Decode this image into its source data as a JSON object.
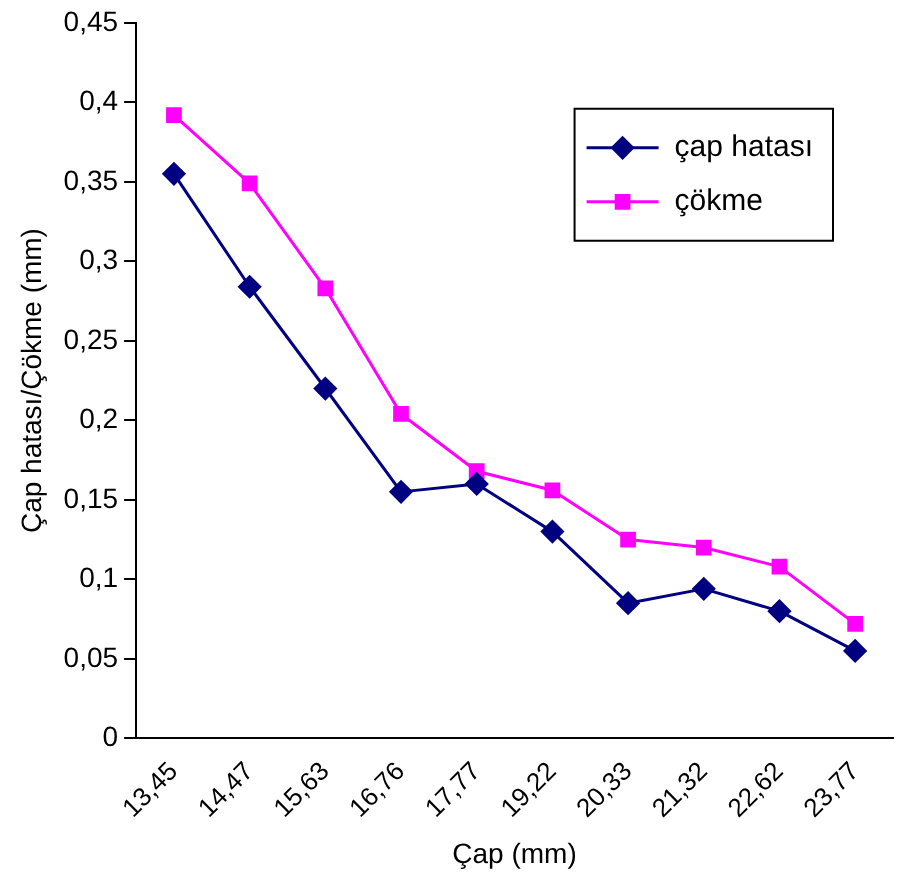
{
  "chart_data": {
    "type": "line",
    "xlabel": "Çap (mm)",
    "ylabel": "Çap hatası/Çökme (mm)",
    "categories": [
      "13,45",
      "14,47",
      "15,63",
      "16,76",
      "17,77",
      "19,22",
      "20,33",
      "21,32",
      "22,62",
      "23,77"
    ],
    "series": [
      {
        "name": "çap hatası",
        "color": "#000080",
        "marker": "diamond",
        "values": [
          0.355,
          0.284,
          0.22,
          0.155,
          0.16,
          0.13,
          0.085,
          0.094,
          0.08,
          0.055
        ]
      },
      {
        "name": "çökme",
        "color": "#ff00ff",
        "marker": "square",
        "values": [
          0.392,
          0.349,
          0.283,
          0.204,
          0.168,
          0.156,
          0.125,
          0.12,
          0.108,
          0.072
        ]
      }
    ],
    "ylim": [
      0,
      0.45
    ],
    "yticks": [
      {
        "value": 0,
        "label": "0"
      },
      {
        "value": 0.05,
        "label": "0,05"
      },
      {
        "value": 0.1,
        "label": "0,1"
      },
      {
        "value": 0.15,
        "label": "0,15"
      },
      {
        "value": 0.2,
        "label": "0,2"
      },
      {
        "value": 0.25,
        "label": "0,25"
      },
      {
        "value": 0.3,
        "label": "0,3"
      },
      {
        "value": 0.35,
        "label": "0,35"
      },
      {
        "value": 0.4,
        "label": "0,4"
      },
      {
        "value": 0.45,
        "label": "0,45"
      }
    ],
    "grid": false,
    "legend": "top right"
  }
}
